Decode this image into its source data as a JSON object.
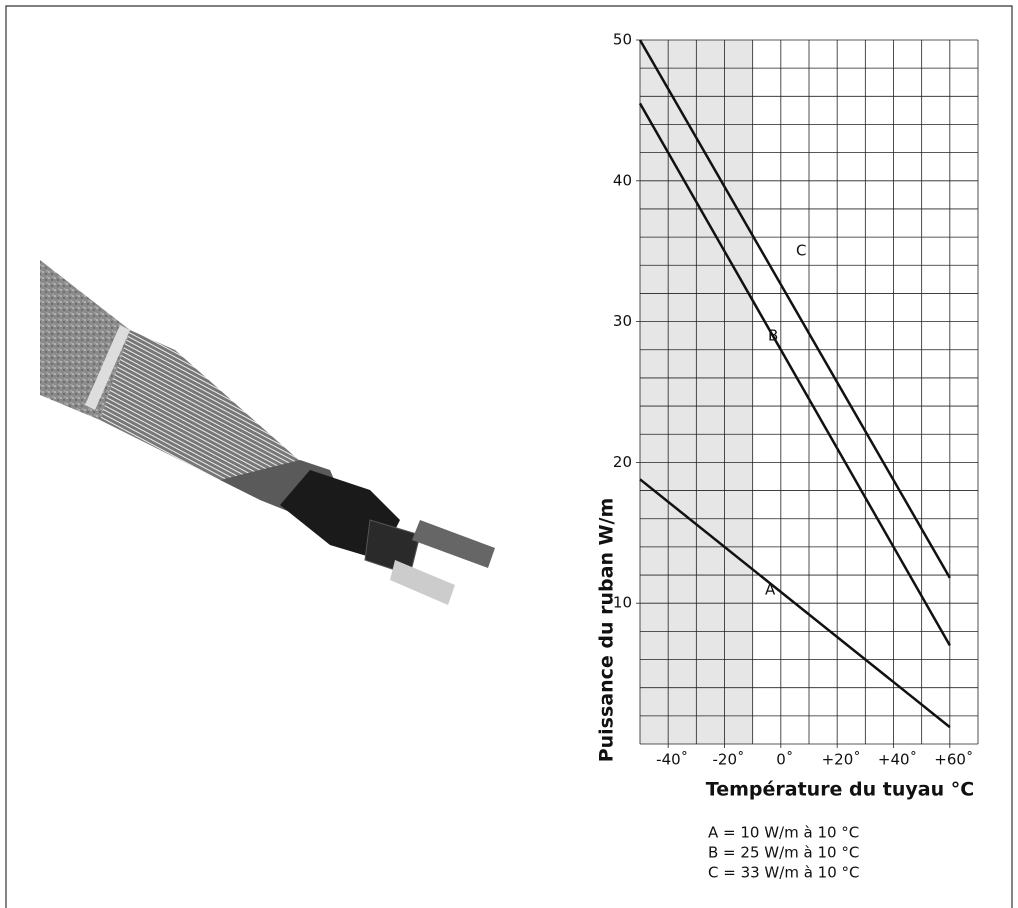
{
  "chart_data": {
    "type": "line",
    "y_label": "Puissance du ruban  W/m",
    "x_label": "Température du tuyau °C",
    "xlim": [
      -50,
      70
    ],
    "ylim": [
      0,
      50
    ],
    "xticks": [
      {
        "value": -40,
        "label": "-40˚"
      },
      {
        "value": -20,
        "label": "-20˚"
      },
      {
        "value": 0,
        "label": "0˚"
      },
      {
        "value": 20,
        "label": "+20˚"
      },
      {
        "value": 40,
        "label": "+40˚"
      },
      {
        "value": 60,
        "label": "+60˚"
      }
    ],
    "yticks": [
      10,
      20,
      30,
      40,
      50
    ],
    "x_grid_step": 10,
    "y_grid_step": 2,
    "shaded_xrange": [
      -50,
      -10
    ],
    "x": [
      -50,
      60
    ],
    "series": [
      {
        "name": "A",
        "color": "#111111",
        "values": [
          18.8,
          1.2
        ]
      },
      {
        "name": "B",
        "color": "#111111",
        "values": [
          45.5,
          7.0
        ]
      },
      {
        "name": "C",
        "color": "#111111",
        "values": [
          50,
          11.8
        ]
      }
    ],
    "notes": [
      "A  =  10 W/m à 10 °C",
      "B  =  25 W/m à 10 °C",
      "C  =  33 W/m à 10 °C"
    ]
  }
}
